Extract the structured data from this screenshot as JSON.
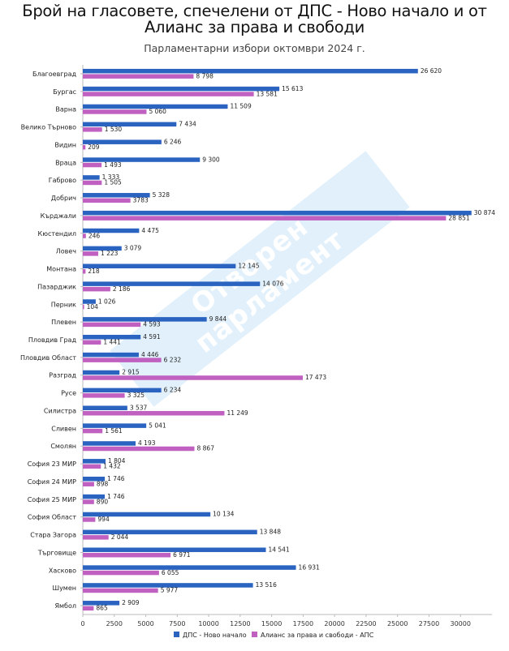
{
  "chart_data": {
    "type": "bar",
    "orientation": "horizontal",
    "title_line1": "Брой на гласовете, спечелени от ДПС - Ново начало и от",
    "title_line2": "Алианс за права и свободи",
    "subtitle": "Парламентарни избори октомври 2024 г.",
    "watermark": "Отворен парламент",
    "xlim": [
      0,
      32500
    ],
    "xticks": [
      0,
      2500,
      5000,
      7500,
      10000,
      12500,
      15000,
      17500,
      20000,
      22500,
      25000,
      27500,
      30000
    ],
    "categories": [
      "Благоевград",
      "Бургас",
      "Варна",
      "Велико Търново",
      "Видин",
      "Враца",
      "Габрово",
      "Добрич",
      "Кърджали",
      "Кюстендил",
      "Ловеч",
      "Монтана",
      "Пазарджик",
      "Перник",
      "Плевен",
      "Пловдив Град",
      "Пловдив Област",
      "Разград",
      "Русе",
      "Силистра",
      "Сливен",
      "Смолян",
      "София 23 МИР",
      "София 24 МИР",
      "София 25 МИР",
      "София Област",
      "Стара Загора",
      "Търговище",
      "Хасково",
      "Шумен",
      "Ямбол"
    ],
    "series": [
      {
        "name": "ДПС - Ново начало",
        "color": "#2a63c0",
        "values": [
          26620,
          15613,
          11509,
          7434,
          6246,
          9300,
          1333,
          5328,
          30874,
          4475,
          3079,
          12145,
          14076,
          1026,
          9844,
          4591,
          4446,
          2915,
          6234,
          3537,
          5041,
          4193,
          1804,
          1746,
          1746,
          10134,
          13848,
          14541,
          16931,
          13516,
          2909
        ],
        "labels": [
          "26 620",
          "15 613",
          "11 509",
          "7 434",
          "6 246",
          "9 300",
          "1 333",
          "5 328",
          "30 874",
          "4 475",
          "3 079",
          "12 145",
          "14 076",
          "1 026",
          "9 844",
          "4 591",
          "4 446",
          "2 915",
          "6 234",
          "3 537",
          "5 041",
          "4 193",
          "1 804",
          "1 746",
          "1 746",
          "10 134",
          "13 848",
          "14 541",
          "16 931",
          "13 516",
          "2 909"
        ]
      },
      {
        "name": "Алианс за права и свободи - АПС",
        "color": "#c060c0",
        "values": [
          8798,
          13581,
          5060,
          1530,
          209,
          1493,
          1505,
          3783,
          28851,
          246,
          1223,
          218,
          2186,
          104,
          4593,
          1441,
          6232,
          17473,
          3325,
          11249,
          1561,
          8867,
          1432,
          898,
          890,
          994,
          2044,
          6971,
          6055,
          5977,
          865
        ],
        "labels": [
          "8 798",
          "13 581",
          "5 060",
          "1 530",
          "209",
          "1 493",
          "1 505",
          "3783",
          "28 851",
          "246",
          "1 223",
          "218",
          "2 186",
          "104",
          "4 593",
          "1 441",
          "6 232",
          "17 473",
          "3 325",
          "11 249",
          "1 561",
          "8 867",
          "1 432",
          "898",
          "890",
          "994",
          "2 044",
          "6 971",
          "6 055",
          "5 977",
          "865"
        ]
      }
    ],
    "legend_position": "bottom",
    "grid": false
  }
}
